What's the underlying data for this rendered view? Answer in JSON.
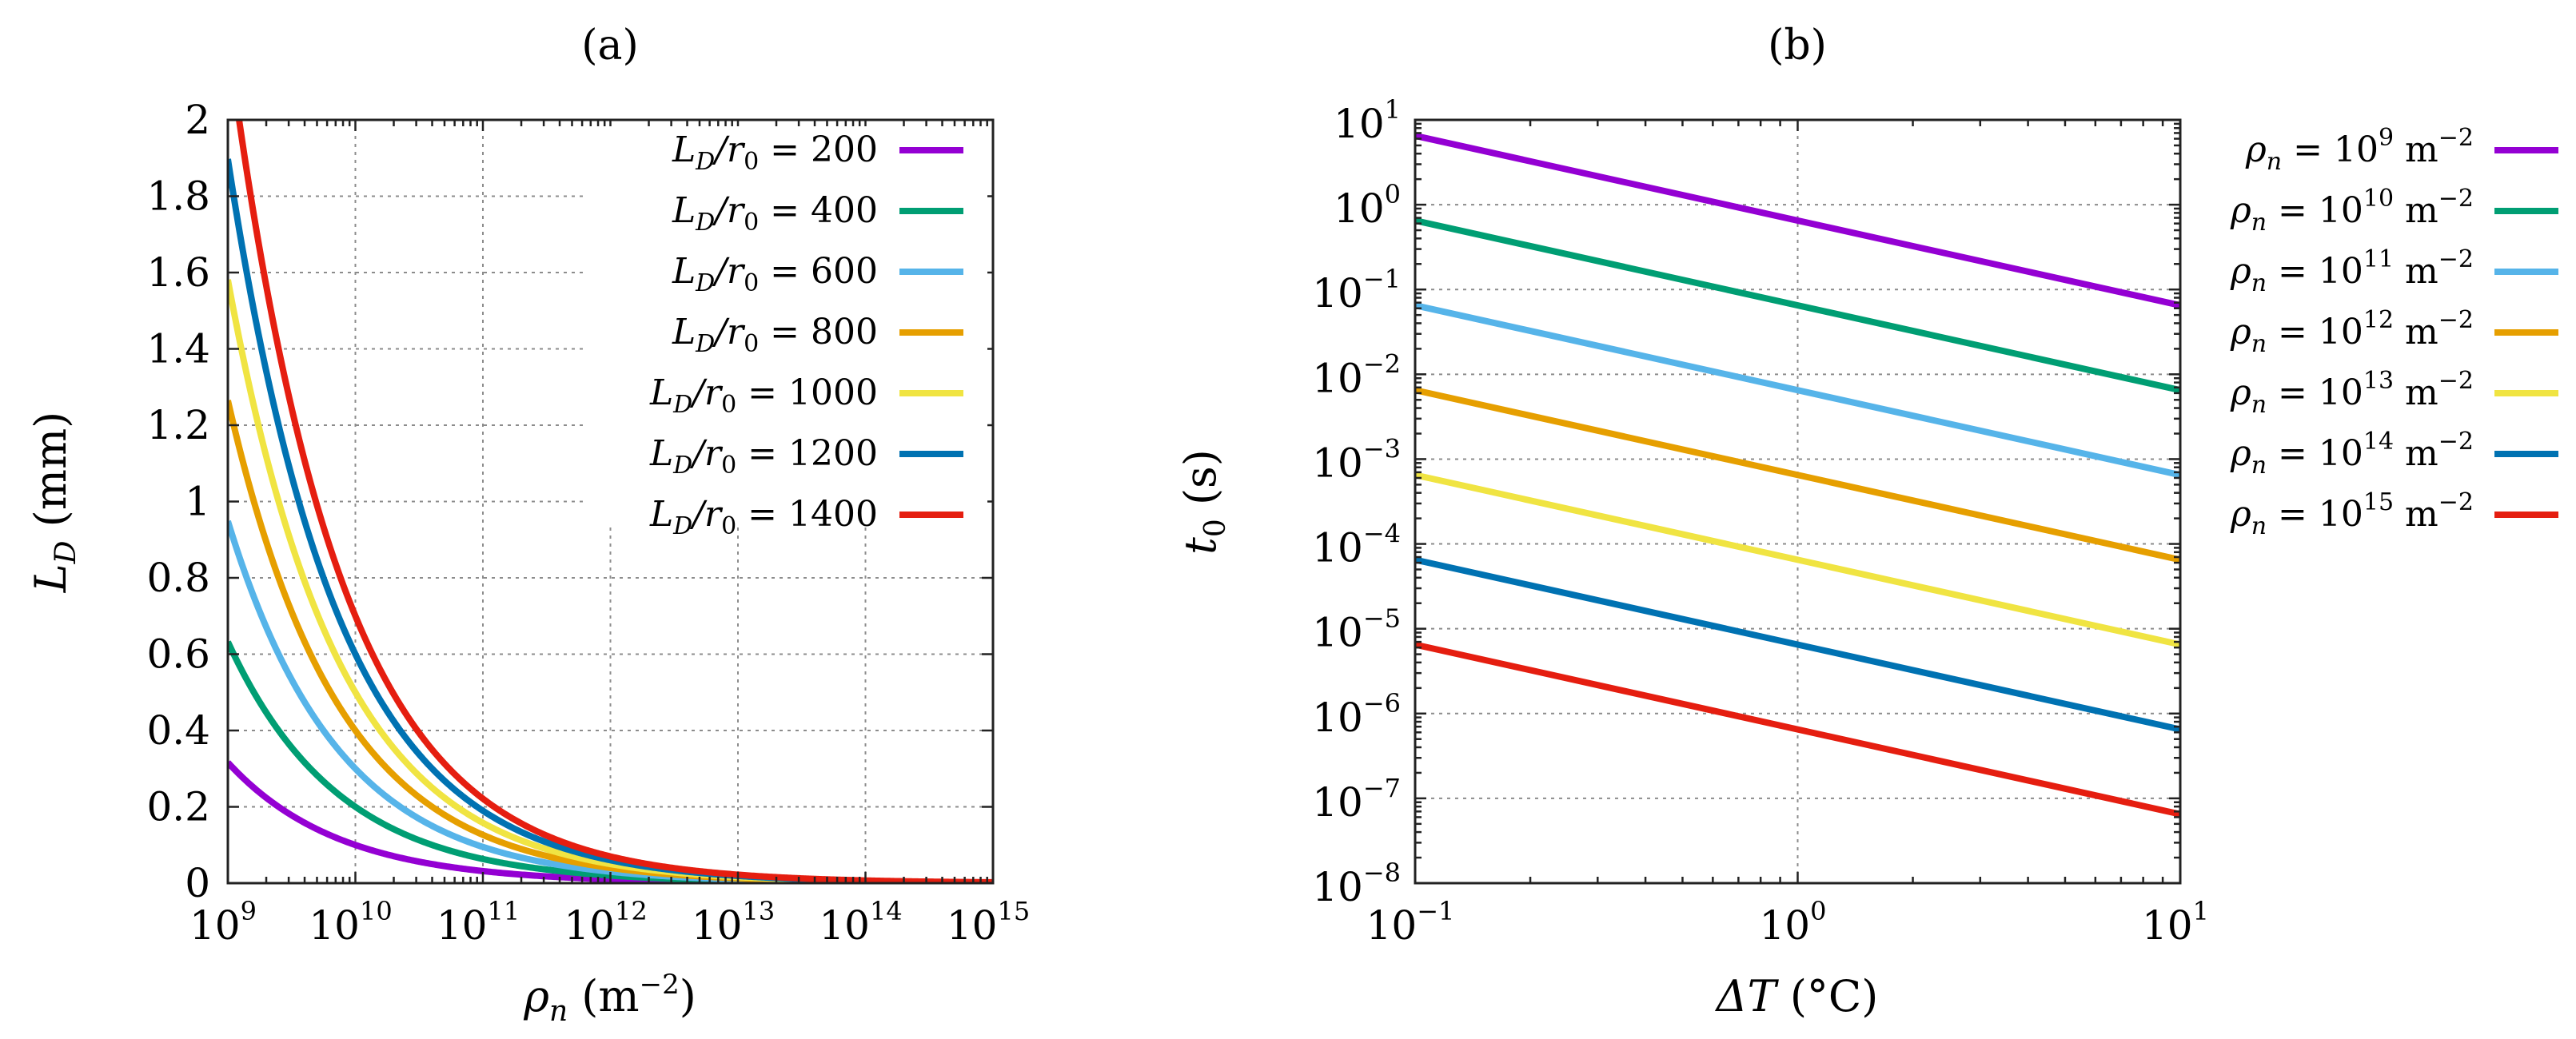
{
  "chart_data": [
    {
      "type": "line",
      "panel_label": "(a)",
      "xscale": "log",
      "yscale": "linear",
      "xlim_exp": [
        9,
        15
      ],
      "ylim": [
        0,
        2
      ],
      "grid": true,
      "xlabel": {
        "base": "ρ",
        "sub": "n",
        "unit_open": " (m",
        "unit_exp": "−2",
        "unit_close": ")"
      },
      "ylabel": {
        "base": "L",
        "sub": "D",
        "unit": " (mm)"
      },
      "x_ticks": [
        {
          "base": "10",
          "exp": "9"
        },
        {
          "base": "10",
          "exp": "10"
        },
        {
          "base": "10",
          "exp": "11"
        },
        {
          "base": "10",
          "exp": "12"
        },
        {
          "base": "10",
          "exp": "13"
        },
        {
          "base": "10",
          "exp": "14"
        },
        {
          "base": "10",
          "exp": "15"
        }
      ],
      "y_ticks": [
        "0",
        "0.2",
        "0.4",
        "0.6",
        "0.8",
        "1",
        "1.2",
        "1.4",
        "1.6",
        "1.8",
        "2"
      ],
      "legend_position": "top-right",
      "model": "L_D = (L_D/r0) / sqrt(rho_n)",
      "series": [
        {
          "name": "L_D/r0 = 200",
          "label_main": "L",
          "label_sub": "D",
          "label_rest": "/r",
          "label_sub2": "0",
          "label_eq": " = 200",
          "ratio": 200,
          "color": "#9400d3"
        },
        {
          "name": "L_D/r0 = 400",
          "label_main": "L",
          "label_sub": "D",
          "label_rest": "/r",
          "label_sub2": "0",
          "label_eq": " = 400",
          "ratio": 400,
          "color": "#009e73"
        },
        {
          "name": "L_D/r0 = 600",
          "label_main": "L",
          "label_sub": "D",
          "label_rest": "/r",
          "label_sub2": "0",
          "label_eq": " = 600",
          "ratio": 600,
          "color": "#56b4e9"
        },
        {
          "name": "L_D/r0 = 800",
          "label_main": "L",
          "label_sub": "D",
          "label_rest": "/r",
          "label_sub2": "0",
          "label_eq": " = 800",
          "ratio": 800,
          "color": "#e69f00"
        },
        {
          "name": "L_D/r0 = 1000",
          "label_main": "L",
          "label_sub": "D",
          "label_rest": "/r",
          "label_sub2": "0",
          "label_eq": " = 1000",
          "ratio": 1000,
          "color": "#f0e442"
        },
        {
          "name": "L_D/r0 = 1200",
          "label_main": "L",
          "label_sub": "D",
          "label_rest": "/r",
          "label_sub2": "0",
          "label_eq": " = 1200",
          "ratio": 1200,
          "color": "#0072b2"
        },
        {
          "name": "L_D/r0 = 1400",
          "label_main": "L",
          "label_sub": "D",
          "label_rest": "/r",
          "label_sub2": "0",
          "label_eq": " = 1400",
          "ratio": 1400,
          "color": "#e51e10"
        }
      ]
    },
    {
      "type": "line",
      "panel_label": "(b)",
      "xscale": "log",
      "yscale": "log",
      "xlim_exp": [
        -1,
        1
      ],
      "ylim_exp": [
        -8,
        1
      ],
      "grid": true,
      "xlabel": {
        "base": "ΔT",
        "unit": " (°C)"
      },
      "ylabel": {
        "base": "t",
        "sub": "0",
        "unit": " (s)"
      },
      "x_ticks": [
        {
          "base": "10",
          "exp": "−1"
        },
        {
          "base": "10",
          "exp": "0"
        },
        {
          "base": "10",
          "exp": "1"
        }
      ],
      "y_ticks": [
        {
          "base": "10",
          "exp": "−8"
        },
        {
          "base": "10",
          "exp": "−7"
        },
        {
          "base": "10",
          "exp": "−6"
        },
        {
          "base": "10",
          "exp": "−5"
        },
        {
          "base": "10",
          "exp": "−4"
        },
        {
          "base": "10",
          "exp": "−3"
        },
        {
          "base": "10",
          "exp": "−2"
        },
        {
          "base": "10",
          "exp": "−1"
        },
        {
          "base": "10",
          "exp": "0"
        },
        {
          "base": "10",
          "exp": "1"
        }
      ],
      "legend_position": "outside-right",
      "series": [
        {
          "name": "ρn = 10^9 m^-2",
          "label_pre": "ρ",
          "label_sub": "n",
          "label_eq": " = 10",
          "label_exp": "9",
          "label_unit": " m",
          "label_unit_exp": "−2",
          "color": "#9400d3",
          "x": [
            0.1,
            10
          ],
          "y": [
            6.5,
            0.065
          ]
        },
        {
          "name": "ρn = 10^10 m^-2",
          "label_pre": "ρ",
          "label_sub": "n",
          "label_eq": " = 10",
          "label_exp": "10",
          "label_unit": " m",
          "label_unit_exp": "−2",
          "color": "#009e73",
          "x": [
            0.1,
            10
          ],
          "y": [
            0.65,
            0.0065
          ]
        },
        {
          "name": "ρn = 10^11 m^-2",
          "label_pre": "ρ",
          "label_sub": "n",
          "label_eq": " = 10",
          "label_exp": "11",
          "label_unit": " m",
          "label_unit_exp": "−2",
          "color": "#56b4e9",
          "x": [
            0.1,
            10
          ],
          "y": [
            0.065,
            0.00065
          ]
        },
        {
          "name": "ρn = 10^12 m^-2",
          "label_pre": "ρ",
          "label_sub": "n",
          "label_eq": " = 10",
          "label_exp": "12",
          "label_unit": " m",
          "label_unit_exp": "−2",
          "color": "#e69f00",
          "x": [
            0.1,
            10
          ],
          "y": [
            0.0065,
            6.5e-05
          ]
        },
        {
          "name": "ρn = 10^13 m^-2",
          "label_pre": "ρ",
          "label_sub": "n",
          "label_eq": " = 10",
          "label_exp": "13",
          "label_unit": " m",
          "label_unit_exp": "−2",
          "color": "#f0e442",
          "x": [
            0.1,
            10
          ],
          "y": [
            0.00065,
            6.5e-06
          ]
        },
        {
          "name": "ρn = 10^14 m^-2",
          "label_pre": "ρ",
          "label_sub": "n",
          "label_eq": " = 10",
          "label_exp": "14",
          "label_unit": " m",
          "label_unit_exp": "−2",
          "color": "#0072b2",
          "x": [
            0.1,
            10
          ],
          "y": [
            6.5e-05,
            6.5e-07
          ]
        },
        {
          "name": "ρn = 10^15 m^-2",
          "label_pre": "ρ",
          "label_sub": "n",
          "label_eq": " = 10",
          "label_exp": "15",
          "label_unit": " m",
          "label_unit_exp": "−2",
          "color": "#e51e10",
          "x": [
            0.1,
            10
          ],
          "y": [
            6.5e-06,
            6.5e-08
          ]
        }
      ]
    }
  ]
}
